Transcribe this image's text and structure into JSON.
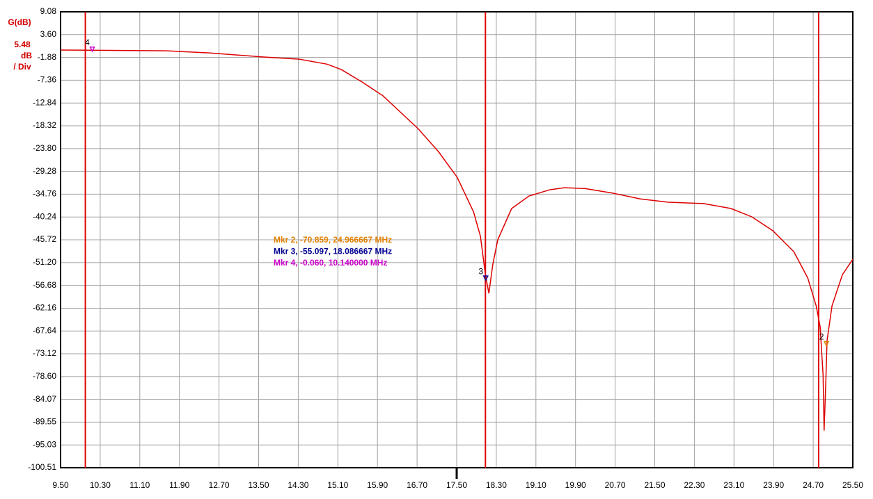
{
  "chart_data": {
    "type": "line",
    "y_axis_label": "G(dB)",
    "scale_per_div": 5.48,
    "scale_unit_lines": [
      "dB",
      "/ Div"
    ],
    "color": "#dd0000",
    "xlim": [
      9.5,
      25.5
    ],
    "ylim": [
      -100.51,
      9.08
    ],
    "grid": true,
    "xticks": [
      {
        "value": 9.5,
        "label": "9.50"
      },
      {
        "value": 10.3,
        "label": "10.30"
      },
      {
        "value": 11.1,
        "label": "11.10"
      },
      {
        "value": 11.9,
        "label": "11.90"
      },
      {
        "value": 12.7,
        "label": "12.70"
      },
      {
        "value": 13.5,
        "label": "13.50"
      },
      {
        "value": 14.3,
        "label": "14.30"
      },
      {
        "value": 15.1,
        "label": "15.10"
      },
      {
        "value": 15.9,
        "label": "15.90"
      },
      {
        "value": 16.7,
        "label": "16.70"
      },
      {
        "value": 17.5,
        "label": "17.50"
      },
      {
        "value": 18.3,
        "label": "18.30"
      },
      {
        "value": 19.1,
        "label": "19.10"
      },
      {
        "value": 19.9,
        "label": "19.90"
      },
      {
        "value": 20.7,
        "label": "20.70"
      },
      {
        "value": 21.5,
        "label": "21.50"
      },
      {
        "value": 22.3,
        "label": "22.30"
      },
      {
        "value": 23.1,
        "label": "23.10"
      },
      {
        "value": 23.9,
        "label": "23.90"
      },
      {
        "value": 24.7,
        "label": "24.70"
      },
      {
        "value": 25.5,
        "label": "25.50"
      }
    ],
    "yticks": [
      9.08,
      {
        "value": 3.6,
        "label": "3.60"
      },
      -1.88,
      -7.36,
      -12.84,
      -18.32,
      {
        "value": -23.8,
        "label": "-23.80"
      },
      -29.28,
      -34.76,
      -40.24,
      -45.72,
      {
        "value": -51.2,
        "label": "-51.20"
      },
      -56.68,
      -62.16,
      -67.64,
      -73.12,
      {
        "value": -78.6,
        "label": "-78.60"
      },
      -84.07,
      -89.55,
      -95.03,
      -100.51
    ],
    "x": [
      9.5,
      11.65,
      12.5,
      13.62,
      14.32,
      14.88,
      15.17,
      15.59,
      16.01,
      16.72,
      17.13,
      17.51,
      17.84,
      17.98,
      18.08,
      18.15,
      18.23,
      18.33,
      18.61,
      18.96,
      19.38,
      19.67,
      20.09,
      20.65,
      21.21,
      21.78,
      22.48,
      23.04,
      23.46,
      23.88,
      24.31,
      24.59,
      24.76,
      24.84,
      24.9,
      24.92,
      24.95,
      24.98,
      25.08,
      25.29,
      25.5
    ],
    "values": [
      -0.1,
      -0.3,
      -0.8,
      -1.8,
      -2.3,
      -3.5,
      -4.8,
      -7.8,
      -11.1,
      -19.0,
      -24.5,
      -30.7,
      -39.0,
      -44.9,
      -54.1,
      -58.6,
      -51.6,
      -45.7,
      -38.2,
      -35.2,
      -33.7,
      -33.2,
      -33.4,
      -34.5,
      -35.9,
      -36.7,
      -37.0,
      -38.2,
      -40.2,
      -43.5,
      -48.6,
      -54.9,
      -61.6,
      -66.6,
      -78.3,
      -91.6,
      -81.6,
      -69.9,
      -61.6,
      -54.1,
      -50.4
    ],
    "cursor_lines": [
      10.0,
      18.08,
      24.81
    ],
    "center_mark": 17.5,
    "markers": [
      {
        "label": "2",
        "x": 24.966667,
        "y": -70.859,
        "color": "#e08000",
        "readout": "Mkr 2, -70.859, 24.966667 MHz"
      },
      {
        "label": "3",
        "x": 18.086667,
        "y": -55.097,
        "color": "#000090",
        "readout": "Mkr 3, -55.097, 18.086667 MHz"
      },
      {
        "label": "4",
        "x": 10.14,
        "y": -0.06,
        "color": "#cc00cc",
        "readout": "Mkr 4, -0.060, 10.140000 MHz"
      }
    ]
  }
}
